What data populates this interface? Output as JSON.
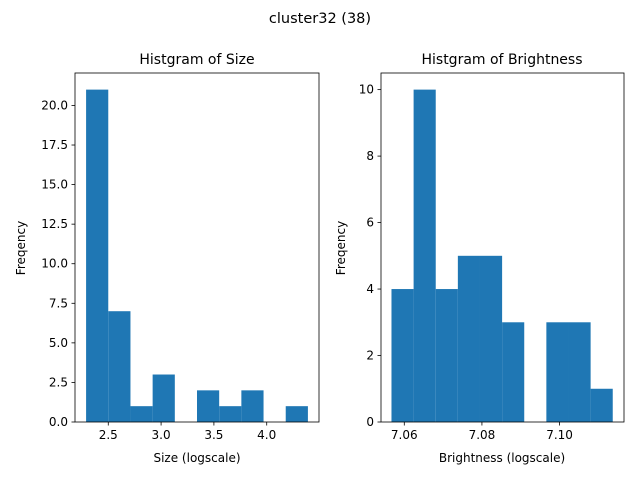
{
  "figure": {
    "suptitle": "cluster32 (38)"
  },
  "chart_data": [
    {
      "type": "bar",
      "title": "Histgram of Size",
      "xlabel": "Size (logscale)",
      "ylabel": "Freqency",
      "color": "#1f77b4",
      "bin_edges": [
        2.29,
        2.5,
        2.71,
        2.92,
        3.13,
        3.34,
        3.55,
        3.76,
        3.97,
        4.18,
        4.39
      ],
      "values": [
        21,
        7,
        1,
        3,
        0,
        2,
        1,
        2,
        0,
        1
      ],
      "xlim": [
        2.185,
        4.495
      ],
      "ylim": [
        0,
        22.05
      ],
      "xticks": [
        2.5,
        3.0,
        3.5,
        4.0
      ],
      "xtick_labels": [
        "2.5",
        "3.0",
        "3.5",
        "4.0"
      ],
      "yticks": [
        0,
        2.5,
        5,
        7.5,
        10,
        12.5,
        15,
        17.5,
        20
      ],
      "ytick_labels": [
        "0.0",
        "2.5",
        "5.0",
        "7.5",
        "10.0",
        "12.5",
        "15.0",
        "17.5",
        "20.0"
      ]
    },
    {
      "type": "bar",
      "title": "Histgram of Brightness",
      "xlabel": "Brightness (logscale)",
      "ylabel": "Freqency",
      "color": "#1f77b4",
      "bin_edges": [
        7.0567,
        7.0624,
        7.0681,
        7.0738,
        7.0795,
        7.0852,
        7.0909,
        7.0966,
        7.1023,
        7.108,
        7.1137
      ],
      "values": [
        4,
        10,
        4,
        5,
        5,
        3,
        0,
        3,
        3,
        1
      ],
      "xlim": [
        7.054,
        7.1166
      ],
      "ylim": [
        0,
        10.5
      ],
      "xticks": [
        7.06,
        7.08,
        7.1
      ],
      "xtick_labels": [
        "7.06",
        "7.08",
        "7.10"
      ],
      "yticks": [
        0,
        2,
        4,
        6,
        8,
        10
      ],
      "ytick_labels": [
        "0",
        "2",
        "4",
        "6",
        "8",
        "10"
      ]
    }
  ]
}
